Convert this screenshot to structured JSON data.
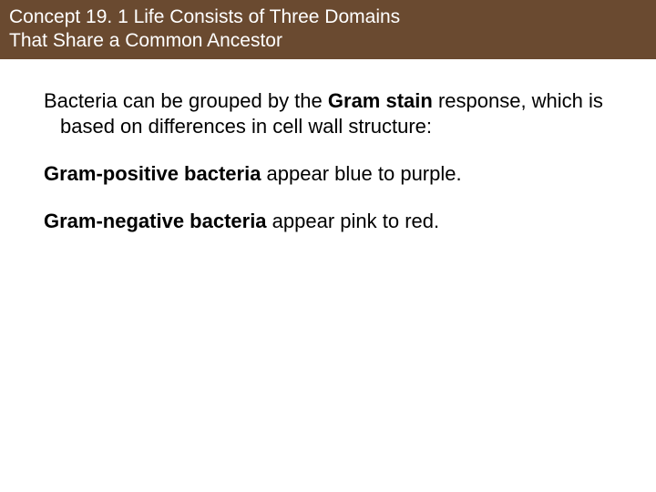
{
  "header": {
    "line1": "Concept 19. 1 Life Consists of Three Domains",
    "line2": "That Share a Common Ancestor",
    "background_color": "#6a4a30",
    "text_color": "#ffffff",
    "font_size": 21
  },
  "body": {
    "background_color": "#ffffff",
    "text_color": "#000000",
    "font_size": 22,
    "paragraphs": [
      {
        "runs": [
          {
            "text": "Bacteria can be grouped by the ",
            "bold": false
          },
          {
            "text": "Gram stain",
            "bold": true
          },
          {
            "text": " response, which is based on differences in cell wall structure:",
            "bold": false
          }
        ]
      },
      {
        "runs": [
          {
            "text": "Gram-positive bacteria",
            "bold": true
          },
          {
            "text": " appear blue to purple.",
            "bold": false
          }
        ]
      },
      {
        "runs": [
          {
            "text": "Gram-negative bacteria",
            "bold": true
          },
          {
            "text": " appear pink to red.",
            "bold": false
          }
        ]
      }
    ]
  }
}
